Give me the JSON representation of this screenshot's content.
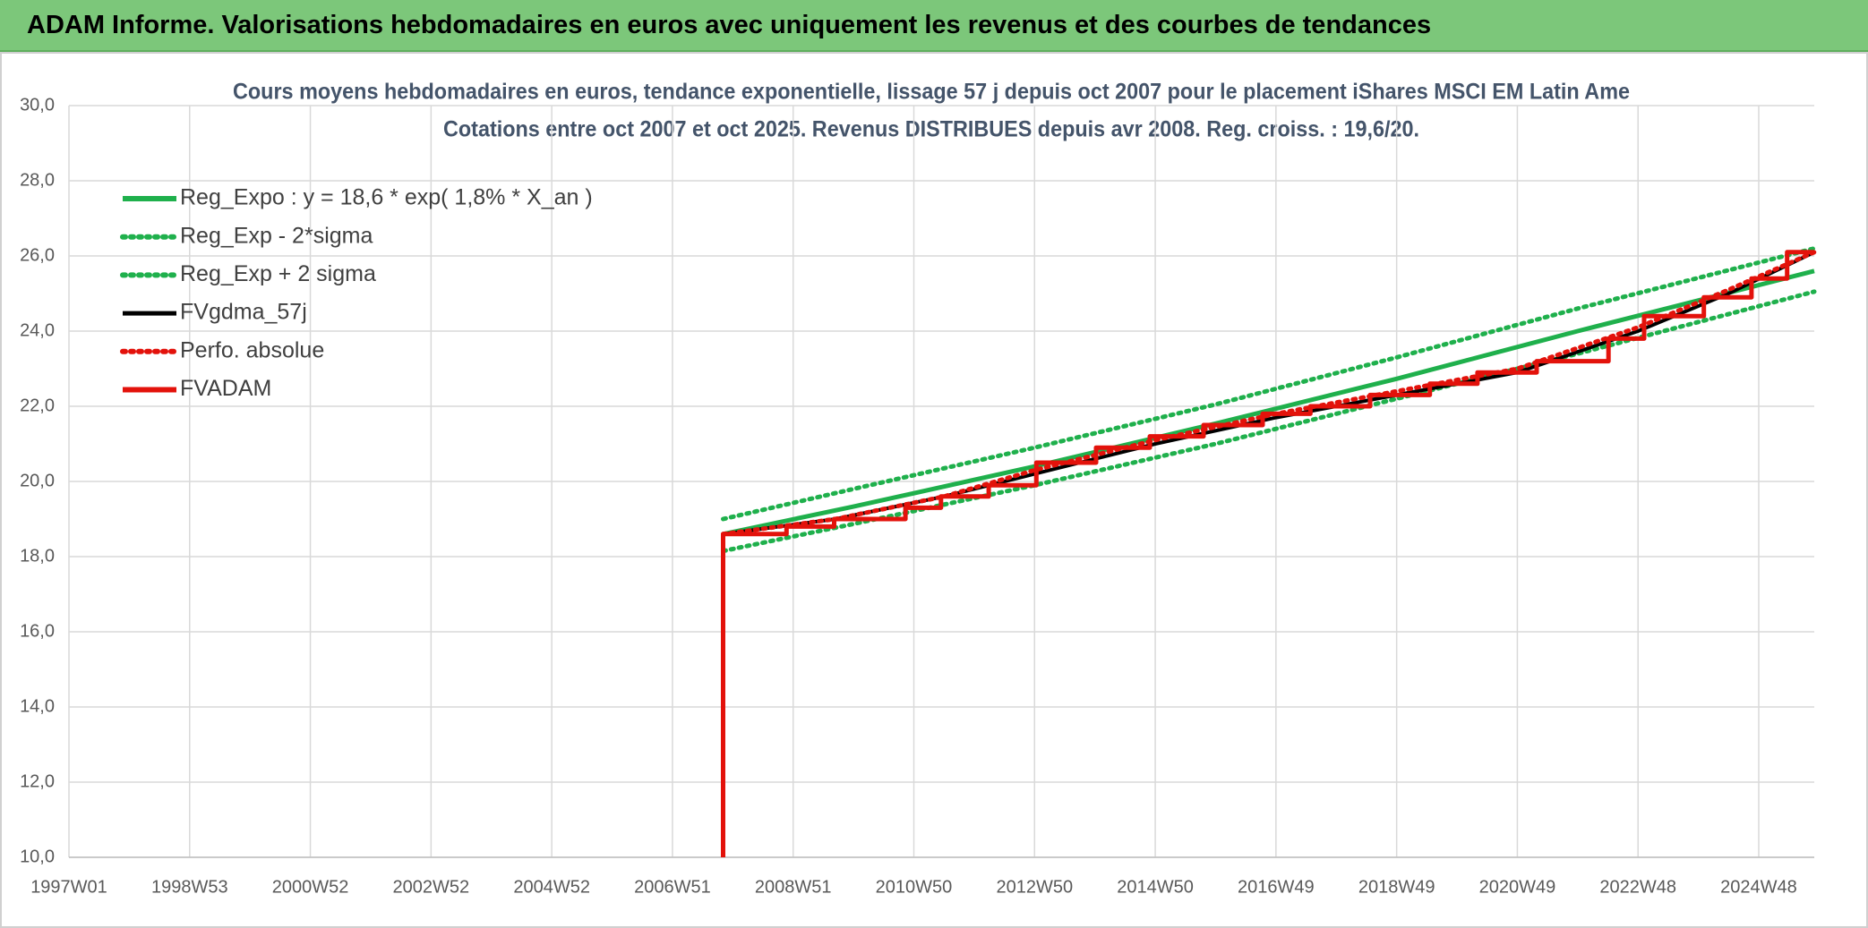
{
  "header": {
    "title": "ADAM Informe. Valorisations hebdomadaires en euros avec uniquement les revenus et des courbes de tendances"
  },
  "chart_data": {
    "type": "line",
    "title": "Cours moyens hebdomadaires en euros, tendance exponentielle, lissage 57 j depuis oct 2007 pour le placement iShares MSCI EM Latin Ame",
    "subtitle": "Cotations entre oct 2007 et oct 2025. Revenus DISTRIBUES depuis avr 2008. Reg. croiss. : 19,6/20.",
    "xlim": [
      1997.0,
      2025.92
    ],
    "xticks": [
      {
        "value": 1997,
        "label": "1997W01"
      },
      {
        "value": 1999,
        "label": "1998W53"
      },
      {
        "value": 2001,
        "label": "2000W52"
      },
      {
        "value": 2003,
        "label": "2002W52"
      },
      {
        "value": 2005,
        "label": "2004W52"
      },
      {
        "value": 2007,
        "label": "2006W51"
      },
      {
        "value": 2009,
        "label": "2008W51"
      },
      {
        "value": 2011,
        "label": "2010W50"
      },
      {
        "value": 2013,
        "label": "2012W50"
      },
      {
        "value": 2015,
        "label": "2014W50"
      },
      {
        "value": 2017,
        "label": "2016W49"
      },
      {
        "value": 2019,
        "label": "2018W49"
      },
      {
        "value": 2021,
        "label": "2020W49"
      },
      {
        "value": 2023,
        "label": "2022W48"
      },
      {
        "value": 2025,
        "label": "2024W48"
      }
    ],
    "ylim": [
      10,
      30
    ],
    "yticks": [
      {
        "value": 10,
        "label": "10,0"
      },
      {
        "value": 12,
        "label": "12,0"
      },
      {
        "value": 14,
        "label": "14,0"
      },
      {
        "value": 16,
        "label": "16,0"
      },
      {
        "value": 18,
        "label": "18,0"
      },
      {
        "value": 20,
        "label": "20,0"
      },
      {
        "value": 22,
        "label": "22,0"
      },
      {
        "value": 24,
        "label": "24,0"
      },
      {
        "value": 26,
        "label": "26,0"
      },
      {
        "value": 28,
        "label": "28,0"
      },
      {
        "value": 30,
        "label": "30,0"
      }
    ],
    "grid": true,
    "legend": "upper-left",
    "series": [
      {
        "name": "Reg_Expo : y = 18,6 * exp( 1,8% *  X_an )",
        "color": "#1fb04c",
        "dash": "solid",
        "x": [
          2007.84,
          2010,
          2013,
          2016,
          2019,
          2022,
          2025.92
        ],
        "values": [
          18.6,
          19.33,
          20.4,
          21.54,
          22.73,
          24.0,
          25.6
        ]
      },
      {
        "name": "Reg_Exp - 2*sigma",
        "color": "#1fb04c",
        "dash": "dotted",
        "x": [
          2007.84,
          2010,
          2013,
          2016,
          2019,
          2022,
          2025.92
        ],
        "values": [
          18.15,
          18.87,
          19.9,
          21.0,
          22.2,
          23.4,
          25.05
        ]
      },
      {
        "name": "Reg_Exp + 2 sigma",
        "color": "#1fb04c",
        "dash": "dotted",
        "x": [
          2007.84,
          2010,
          2013,
          2016,
          2019,
          2022,
          2025.92
        ],
        "values": [
          19.0,
          19.8,
          20.9,
          22.05,
          23.3,
          24.6,
          26.2
        ]
      },
      {
        "name": "FVgdma_57j",
        "color": "#000000",
        "dash": "solid",
        "x": [
          2007.84,
          2009.7,
          2011.5,
          2013.0,
          2015.0,
          2017.0,
          2019.0,
          2021.0,
          2023.0,
          2024.5,
          2025.92
        ],
        "values": [
          18.6,
          19.0,
          19.6,
          20.2,
          21.0,
          21.7,
          22.3,
          22.9,
          24.0,
          25.0,
          26.1
        ]
      },
      {
        "name": "Perfo. absolue",
        "color": "#e3120b",
        "dash": "dotted",
        "x": [
          2007.84,
          2009.7,
          2011.5,
          2013.0,
          2015.0,
          2017.0,
          2019.0,
          2021.0,
          2023.0,
          2024.5,
          2025.92
        ],
        "values": [
          18.6,
          19.0,
          19.6,
          20.3,
          21.1,
          21.8,
          22.4,
          23.0,
          24.1,
          25.1,
          26.1
        ]
      },
      {
        "name": "FVADAM",
        "color": "#e3120b",
        "dash": "solid",
        "x": [
          2007.84,
          2007.84,
          2008.89,
          2008.89,
          2009.68,
          2009.68,
          2010.86,
          2010.86,
          2011.45,
          2011.45,
          2012.24,
          2012.24,
          2013.03,
          2013.03,
          2014.02,
          2014.02,
          2014.91,
          2014.91,
          2015.8,
          2015.8,
          2016.78,
          2016.78,
          2017.57,
          2017.57,
          2018.56,
          2018.56,
          2019.55,
          2019.55,
          2020.34,
          2020.34,
          2021.32,
          2021.32,
          2022.51,
          2022.51,
          2023.1,
          2023.1,
          2024.09,
          2024.09,
          2024.88,
          2024.88,
          2025.47,
          2025.47,
          2025.92
        ],
        "values": [
          10.0,
          18.6,
          18.6,
          18.8,
          18.8,
          19.0,
          19.0,
          19.3,
          19.3,
          19.6,
          19.6,
          19.9,
          19.9,
          20.5,
          20.5,
          20.9,
          20.9,
          21.2,
          21.2,
          21.5,
          21.5,
          21.8,
          21.8,
          22.0,
          22.0,
          22.3,
          22.3,
          22.6,
          22.6,
          22.9,
          22.9,
          23.2,
          23.2,
          23.8,
          23.8,
          24.4,
          24.4,
          24.9,
          24.9,
          25.4,
          25.4,
          26.1,
          26.1
        ]
      }
    ]
  }
}
